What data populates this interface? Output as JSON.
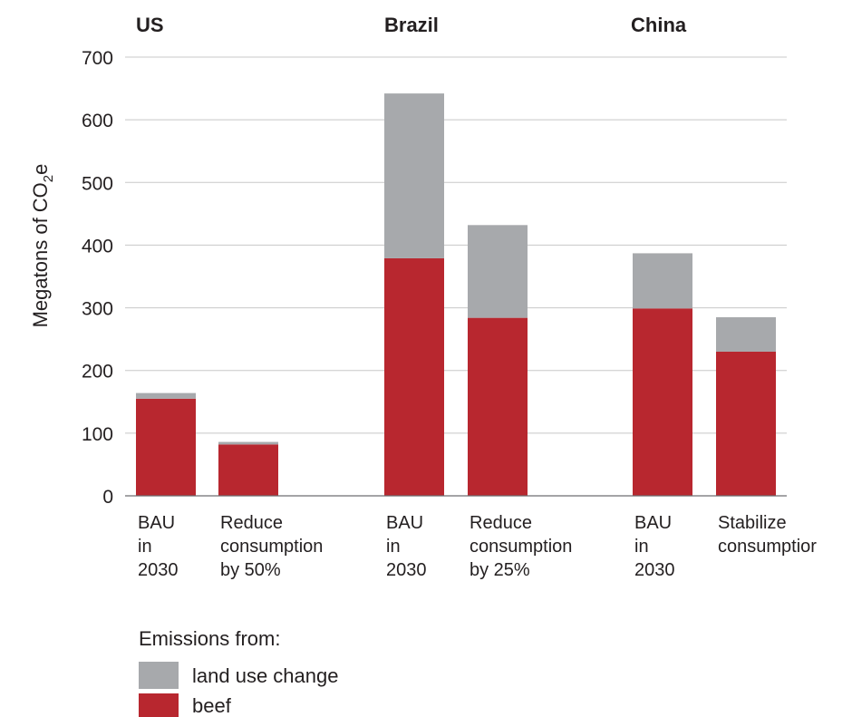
{
  "chart_data": {
    "type": "bar",
    "stacked": true,
    "ylabel_main": "Megatons of CO",
    "ylabel_sub": "2",
    "ylabel_tail": "e",
    "ylim": [
      0,
      700
    ],
    "yticks": [
      0,
      100,
      200,
      300,
      400,
      500,
      600,
      700
    ],
    "grid": true,
    "groups": [
      {
        "name": "US",
        "categories": [
          [
            "BAU",
            "in",
            "2030"
          ],
          [
            "Reduce",
            "consumption",
            "by 50%"
          ]
        ]
      },
      {
        "name": "Brazil",
        "categories": [
          [
            "BAU",
            "in",
            "2030"
          ],
          [
            "Reduce",
            "consumption",
            "by 25%"
          ]
        ]
      },
      {
        "name": "China",
        "categories": [
          [
            "BAU",
            "in",
            "2030"
          ],
          [
            "Stabilize",
            "consumptior"
          ]
        ]
      }
    ],
    "series": [
      {
        "name": "beef",
        "color": "#b8272f",
        "values": [
          155,
          82,
          379,
          284,
          299,
          230
        ]
      },
      {
        "name": "land use change",
        "color": "#a7a9ac",
        "values": [
          9,
          4,
          263,
          148,
          88,
          55
        ]
      }
    ],
    "legend": {
      "title": "Emissions from:",
      "placement": "bottom-left",
      "items": [
        {
          "label": "land use change",
          "color": "#a7a9ac"
        },
        {
          "label": "beef",
          "color": "#b8272f"
        }
      ]
    }
  }
}
